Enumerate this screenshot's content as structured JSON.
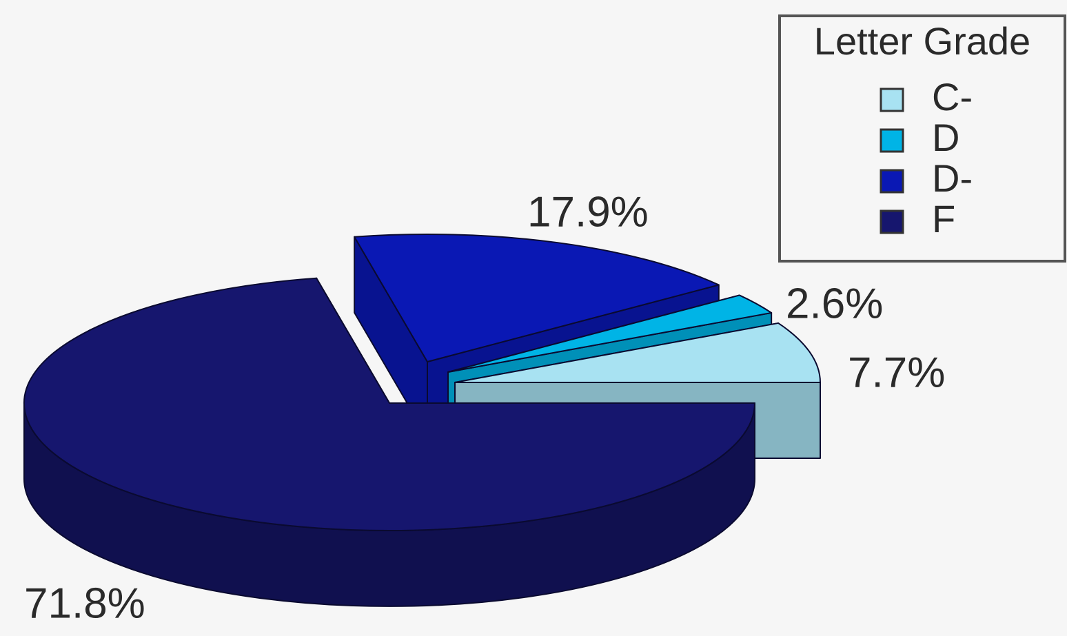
{
  "chart_data": {
    "type": "pie3d",
    "categories": [
      "C-",
      "D",
      "D-",
      "F"
    ],
    "values": [
      7.7,
      2.6,
      17.9,
      71.8
    ],
    "value_labels": [
      "7.7%",
      "2.6%",
      "17.9%",
      "71.8%"
    ],
    "colors": [
      "#a8e2f2",
      "#00b4e6",
      "#0a18b4",
      "#16166e"
    ],
    "legend": {
      "title": "Letter Grade",
      "position": "top-right"
    }
  }
}
